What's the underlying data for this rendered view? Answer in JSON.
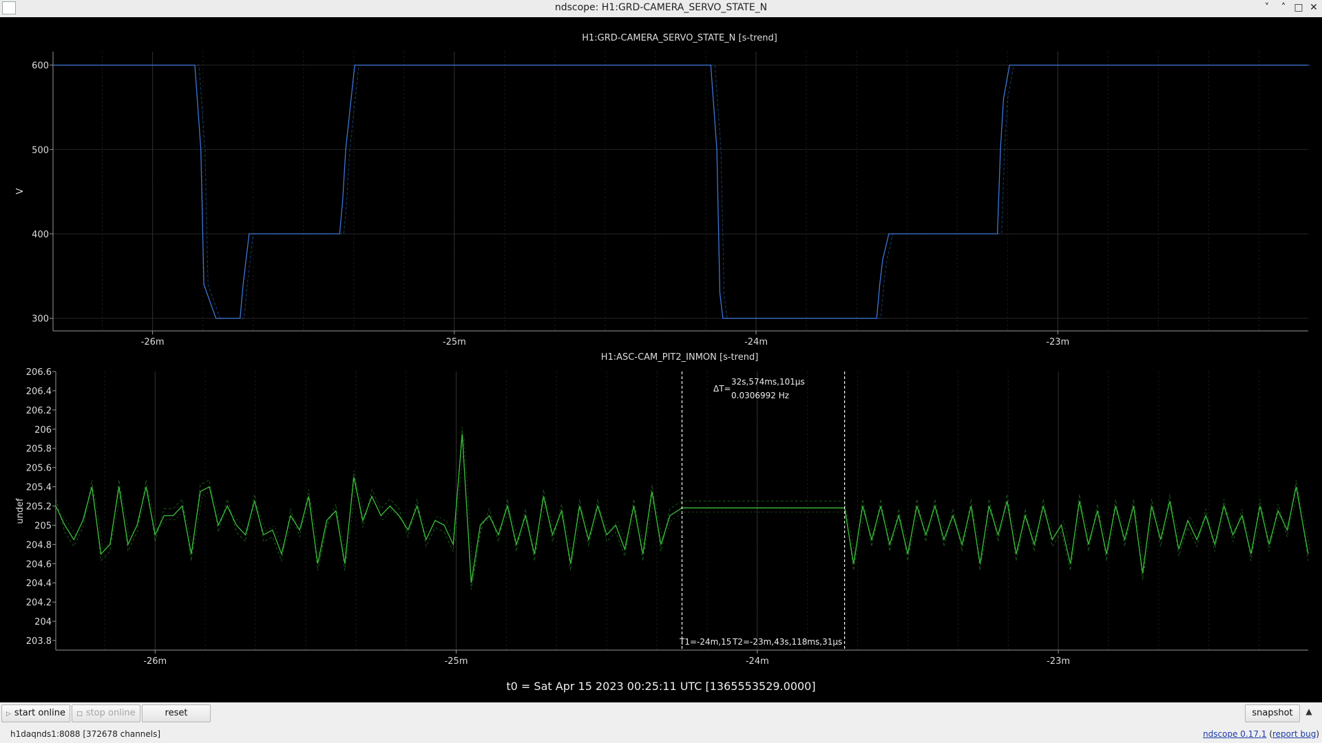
{
  "window": {
    "title": "ndscope: H1:GRD-CAMERA_SERVO_STATE_N",
    "minimize_icon": "chevron-down-icon",
    "restore_icon": "chevron-up-icon",
    "maximize_icon": "square-icon",
    "close_icon": "close-icon"
  },
  "plots": [
    {
      "title": "H1:GRD-CAMERA_SERVO_STATE_N [s-trend]",
      "ylabel": "V",
      "yticks": [
        "300",
        "400",
        "500",
        "600"
      ],
      "xticks": [
        "-26m",
        "-25m",
        "-24m",
        "-23m"
      ],
      "color": "#3c78d8"
    },
    {
      "title": "H1:ASC-CAM_PIT2_INMON [s-trend]",
      "ylabel": "undef",
      "yticks": [
        "203.8",
        "204",
        "204.2",
        "204.4",
        "204.6",
        "204.8",
        "205",
        "205.2",
        "205.4",
        "205.6",
        "205.8",
        "206",
        "206.2",
        "206.4",
        "206.6"
      ],
      "xticks": [
        "-26m",
        "-25m",
        "-24m",
        "-23m"
      ],
      "color": "#3cbf3c",
      "cursors": {
        "delta_label": "ΔT=",
        "delta_time": "32s,574ms,101μs",
        "frequency": "0.0306992 Hz",
        "t1_label": "T1=-24m,15",
        "t2_label": "T2=-23m,43s,118ms,31μs"
      }
    }
  ],
  "t0_label": "t0 = Sat Apr 15 2023 00:25:11 UTC [1365553529.0000]",
  "chart_data": [
    {
      "type": "line",
      "title": "H1:GRD-CAMERA_SERVO_STATE_N [s-trend]",
      "xlabel": "",
      "ylabel": "V",
      "x_unit": "minutes relative to t0",
      "xlim": [
        -26.33,
        -22.17
      ],
      "ylim": [
        285,
        616
      ],
      "grid": true,
      "series": [
        {
          "x": [
            -26.33,
            -25.86,
            -25.84,
            -25.83,
            -25.79,
            -25.71,
            -25.7,
            -25.68,
            -25.38,
            -25.37,
            -25.36,
            -25.33,
            -24.15,
            -24.13,
            -24.12,
            -24.11,
            -23.6,
            -23.59,
            -23.58,
            -23.56,
            -23.2,
            -23.19,
            -23.18,
            -23.16,
            -22.17
          ],
          "y": [
            600,
            600,
            500,
            340,
            300,
            300,
            340,
            400,
            400,
            440,
            500,
            600,
            600,
            500,
            330,
            300,
            300,
            340,
            370,
            400,
            400,
            500,
            560,
            600,
            600
          ]
        }
      ]
    },
    {
      "type": "line",
      "title": "H1:ASC-CAM_PIT2_INMON [s-trend]",
      "xlabel": "",
      "ylabel": "undef",
      "x_unit": "minutes relative to t0",
      "xlim": [
        -26.33,
        -22.17
      ],
      "ylim": [
        203.7,
        206.6
      ],
      "grid": true,
      "cursors_x": [
        -24.25,
        -23.71
      ],
      "series": [
        {
          "x": [
            -26.33,
            -26.3,
            -26.27,
            -26.24,
            -26.21,
            -26.18,
            -26.15,
            -26.12,
            -26.09,
            -26.06,
            -26.03,
            -26.0,
            -25.97,
            -25.94,
            -25.91,
            -25.88,
            -25.85,
            -25.82,
            -25.79,
            -25.76,
            -25.73,
            -25.7,
            -25.67,
            -25.64,
            -25.61,
            -25.58,
            -25.55,
            -25.52,
            -25.49,
            -25.46,
            -25.43,
            -25.4,
            -25.37,
            -25.34,
            -25.31,
            -25.28,
            -25.25,
            -25.22,
            -25.19,
            -25.16,
            -25.13,
            -25.1,
            -25.07,
            -25.04,
            -25.01,
            -24.98,
            -24.95,
            -24.92,
            -24.89,
            -24.86,
            -24.83,
            -24.8,
            -24.77,
            -24.74,
            -24.71,
            -24.68,
            -24.65,
            -24.62,
            -24.59,
            -24.56,
            -24.53,
            -24.5,
            -24.47,
            -24.44,
            -24.41,
            -24.38,
            -24.35,
            -24.32,
            -24.29,
            -24.25,
            -23.71,
            -23.68,
            -23.65,
            -23.62,
            -23.59,
            -23.56,
            -23.53,
            -23.5,
            -23.47,
            -23.44,
            -23.41,
            -23.38,
            -23.35,
            -23.32,
            -23.29,
            -23.26,
            -23.23,
            -23.2,
            -23.17,
            -23.14,
            -23.11,
            -23.08,
            -23.05,
            -23.02,
            -22.99,
            -22.96,
            -22.93,
            -22.9,
            -22.87,
            -22.84,
            -22.81,
            -22.78,
            -22.75,
            -22.72,
            -22.69,
            -22.66,
            -22.63,
            -22.6,
            -22.57,
            -22.54,
            -22.51,
            -22.48,
            -22.45,
            -22.42,
            -22.39,
            -22.36,
            -22.33,
            -22.3,
            -22.27,
            -22.24,
            -22.21,
            -22.17
          ],
          "y": [
            205.2,
            205.0,
            204.85,
            205.05,
            205.4,
            204.7,
            204.8,
            205.4,
            204.8,
            205.0,
            205.4,
            204.9,
            205.1,
            205.1,
            205.2,
            204.7,
            205.35,
            205.4,
            205.0,
            205.2,
            205.0,
            204.9,
            205.25,
            204.9,
            204.95,
            204.7,
            205.1,
            204.95,
            205.3,
            204.6,
            205.05,
            205.15,
            204.6,
            205.5,
            205.05,
            205.3,
            205.1,
            205.2,
            205.1,
            204.95,
            205.2,
            204.85,
            205.05,
            205.0,
            204.8,
            205.95,
            204.4,
            205.0,
            205.1,
            204.9,
            205.2,
            204.8,
            205.1,
            204.7,
            205.3,
            204.9,
            205.15,
            204.6,
            205.2,
            204.85,
            205.2,
            204.9,
            205.0,
            204.75,
            205.2,
            204.7,
            205.35,
            204.8,
            205.1,
            205.18,
            205.18,
            204.6,
            205.2,
            204.85,
            205.2,
            204.8,
            205.1,
            204.7,
            205.2,
            204.9,
            205.2,
            204.85,
            205.1,
            204.8,
            205.2,
            204.6,
            205.2,
            204.9,
            205.25,
            204.7,
            205.1,
            204.8,
            205.2,
            204.85,
            205.0,
            204.6,
            205.25,
            204.8,
            205.15,
            204.7,
            205.2,
            204.85,
            205.2,
            204.5,
            205.2,
            204.85,
            205.25,
            204.75,
            205.05,
            204.85,
            205.1,
            204.8,
            205.2,
            204.9,
            205.1,
            204.7,
            205.2,
            204.8,
            205.15,
            204.95,
            205.4,
            204.7
          ]
        }
      ]
    }
  ],
  "toolbar": {
    "start_online": "start online",
    "stop_online": "stop online",
    "reset": "reset",
    "snapshot": "snapshot",
    "snapshot_arrow_icon": "triangle-up-icon",
    "play_icon": "play-icon",
    "stop_icon": "stop-icon"
  },
  "status": {
    "server": "h1daqnds1:8088  [372678 channels]",
    "version": "ndscope 0.17.1",
    "report_bug": "report bug",
    "paren_open": "(",
    "paren_close": ")"
  }
}
